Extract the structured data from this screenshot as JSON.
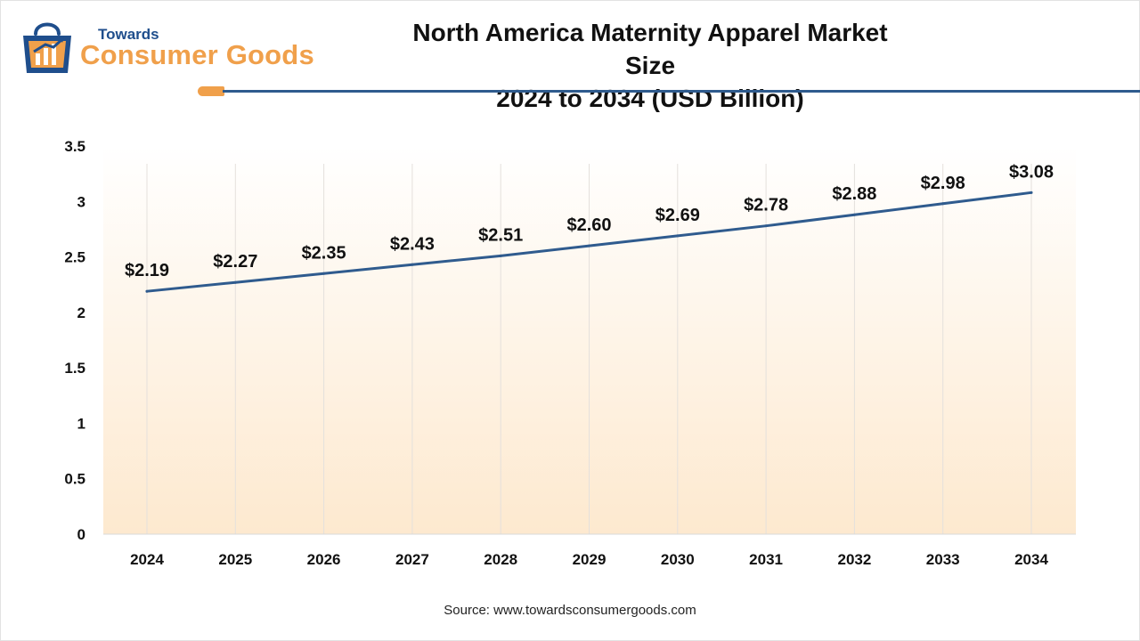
{
  "brand": {
    "name_top": "Towards",
    "name_main": "Consumer Goods"
  },
  "header": {
    "title_line1": "North America Maternity Apparel Market Size",
    "title_line2": "2024 to 2034 (USD Billion)"
  },
  "footer": {
    "source": "Source: www.towardsconsumergoods.com"
  },
  "colors": {
    "line": "#2f5b8e",
    "accent": "#f0a04b",
    "brand_blue": "#1f4e8c",
    "fill_top": "#ffffff",
    "fill_bottom": "#fde9cf"
  },
  "chart_data": {
    "type": "line",
    "title": "North America Maternity Apparel Market Size 2024 to 2034 (USD Billion)",
    "xlabel": "",
    "ylabel": "",
    "categories": [
      "2024",
      "2025",
      "2026",
      "2027",
      "2028",
      "2029",
      "2030",
      "2031",
      "2032",
      "2033",
      "2034"
    ],
    "series": [
      {
        "name": "Market Size (USD Billion)",
        "values": [
          2.19,
          2.27,
          2.35,
          2.43,
          2.51,
          2.6,
          2.69,
          2.78,
          2.88,
          2.98,
          3.08
        ],
        "labels": [
          "$2.19",
          "$2.27",
          "$2.35",
          "$2.43",
          "$2.51",
          "$2.60",
          "$2.69",
          "$2.78",
          "$2.88",
          "$2.98",
          "$3.08"
        ]
      }
    ],
    "ylim": [
      0,
      3.5
    ],
    "yticks": [
      "0",
      "0.5",
      "1",
      "1.5",
      "2",
      "2.5",
      "3",
      "3.5"
    ],
    "ytick_values": [
      0,
      0.5,
      1,
      1.5,
      2,
      2.5,
      3,
      3.5
    ],
    "grid": "vertical",
    "legend": "none"
  }
}
